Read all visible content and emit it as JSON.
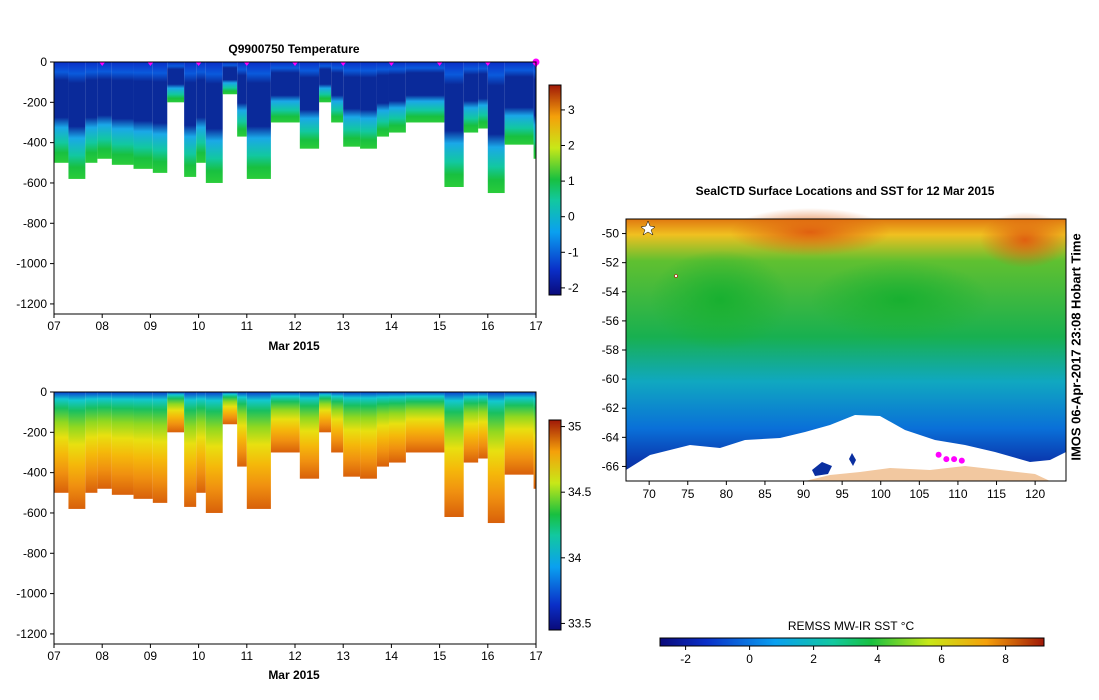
{
  "timestamp_label": "IMOS 06-Apr-2017 23:08 Hobart Time",
  "chart_data": [
    {
      "type": "heatmap",
      "title": "Q9900750  Temperature",
      "xlabel": "Mar 2015",
      "ylabel": "",
      "x_ticks": [
        "07",
        "08",
        "09",
        "10",
        "11",
        "12",
        "13",
        "14",
        "15",
        "16",
        "17"
      ],
      "x_range": [
        7,
        17
      ],
      "y_ticks": [
        0,
        -200,
        -400,
        -600,
        -800,
        -1000,
        -1200
      ],
      "ylim": [
        -1250,
        0
      ],
      "colorbar": {
        "min": -2.2,
        "max": 3.7,
        "ticks": [
          -2,
          -1,
          0,
          1,
          2,
          3
        ]
      },
      "profile_markers": [
        8,
        9,
        10,
        11,
        12,
        13,
        14,
        15,
        16,
        17
      ],
      "profiles": [
        {
          "x0": 7.0,
          "x1": 7.3,
          "depth": 500
        },
        {
          "x0": 7.3,
          "x1": 7.65,
          "depth": 580
        },
        {
          "x0": 7.65,
          "x1": 7.9,
          "depth": 500
        },
        {
          "x0": 7.9,
          "x1": 8.2,
          "depth": 480
        },
        {
          "x0": 8.2,
          "x1": 8.65,
          "depth": 510
        },
        {
          "x0": 8.65,
          "x1": 9.05,
          "depth": 530
        },
        {
          "x0": 9.05,
          "x1": 9.35,
          "depth": 550
        },
        {
          "x0": 9.35,
          "x1": 9.7,
          "depth": 200
        },
        {
          "x0": 9.7,
          "x1": 9.95,
          "depth": 570
        },
        {
          "x0": 9.95,
          "x1": 10.15,
          "depth": 500
        },
        {
          "x0": 10.15,
          "x1": 10.5,
          "depth": 600
        },
        {
          "x0": 10.5,
          "x1": 10.8,
          "depth": 160
        },
        {
          "x0": 10.8,
          "x1": 11.0,
          "depth": 370
        },
        {
          "x0": 11.0,
          "x1": 11.5,
          "depth": 580
        },
        {
          "x0": 11.5,
          "x1": 12.1,
          "depth": 300
        },
        {
          "x0": 12.1,
          "x1": 12.5,
          "depth": 430
        },
        {
          "x0": 12.5,
          "x1": 12.75,
          "depth": 200
        },
        {
          "x0": 12.75,
          "x1": 13.0,
          "depth": 300
        },
        {
          "x0": 13.0,
          "x1": 13.35,
          "depth": 420
        },
        {
          "x0": 13.35,
          "x1": 13.7,
          "depth": 430
        },
        {
          "x0": 13.7,
          "x1": 13.95,
          "depth": 370
        },
        {
          "x0": 13.95,
          "x1": 14.3,
          "depth": 350
        },
        {
          "x0": 14.3,
          "x1": 15.1,
          "depth": 300
        },
        {
          "x0": 15.1,
          "x1": 15.5,
          "depth": 620
        },
        {
          "x0": 15.5,
          "x1": 15.8,
          "depth": 350
        },
        {
          "x0": 15.8,
          "x1": 16.0,
          "depth": 330
        },
        {
          "x0": 16.0,
          "x1": 16.35,
          "depth": 650
        },
        {
          "x0": 16.35,
          "x1": 16.95,
          "depth": 410
        },
        {
          "x0": 16.95,
          "x1": 17.05,
          "depth": 480
        }
      ]
    },
    {
      "type": "heatmap",
      "title": "",
      "xlabel": "Mar 2015",
      "ylabel": "",
      "x_ticks": [
        "07",
        "08",
        "09",
        "10",
        "11",
        "12",
        "13",
        "14",
        "15",
        "16",
        "17"
      ],
      "x_range": [
        7,
        17
      ],
      "y_ticks": [
        0,
        -200,
        -400,
        -600,
        -800,
        -1000,
        -1200
      ],
      "ylim": [
        -1250,
        0
      ],
      "colorbar": {
        "min": 33.45,
        "max": 35.05,
        "ticks": [
          33.5,
          34,
          34.5,
          35
        ],
        "tick_labels": [
          "33.5",
          "34",
          "34.5",
          "35"
        ]
      }
    },
    {
      "type": "heatmap",
      "title": "SealCTD Surface Locations and SST for 12 Mar 2015",
      "xlabel": "",
      "ylabel": "",
      "x_ticks": [
        70,
        75,
        80,
        85,
        90,
        95,
        100,
        105,
        110,
        115,
        120
      ],
      "y_ticks": [
        -50,
        -52,
        -54,
        -56,
        -58,
        -60,
        -62,
        -64,
        -66
      ],
      "xlim": [
        67,
        124
      ],
      "ylim": [
        -67,
        -49
      ],
      "colorbar": {
        "label": "REMSS MW-IR SST °C",
        "min": -2.8,
        "max": 9.2,
        "ticks": [
          -2,
          0,
          2,
          4,
          6,
          8
        ]
      },
      "seal_locations": [
        [
          107.5,
          -65.2
        ],
        [
          108.5,
          -65.5
        ],
        [
          109.5,
          -65.5
        ],
        [
          110.5,
          -65.6
        ]
      ]
    }
  ]
}
